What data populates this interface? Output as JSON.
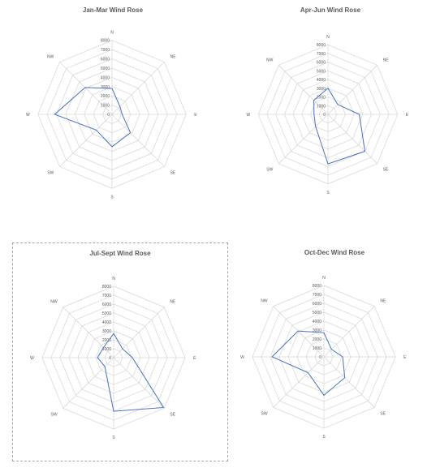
{
  "style": {
    "series_color": "#4472c4",
    "grid_color": "#d9d9d9",
    "text_color": "#595959"
  },
  "chart_data": [
    {
      "type": "radar",
      "title": "Jan-Mar Wind Rose",
      "directions": [
        "N",
        "NE",
        "E",
        "SE",
        "S",
        "SW",
        "W",
        "NW"
      ],
      "rlim": [
        0,
        8000
      ],
      "ticks": [
        0,
        1000,
        2000,
        3000,
        4000,
        5000,
        6000,
        7000,
        8000
      ],
      "grid": true,
      "series": [
        {
          "values": [
            2800,
            1200,
            1100,
            2800,
            3500,
            2400,
            6200,
            4100
          ]
        }
      ]
    },
    {
      "type": "radar",
      "title": "Apr-Jun Wind Rose",
      "directions": [
        "N",
        "NE",
        "E",
        "SE",
        "S",
        "SW",
        "W",
        "NW"
      ],
      "rlim": [
        0,
        8000
      ],
      "ticks": [
        0,
        1000,
        2000,
        3000,
        4000,
        5000,
        6000,
        7000,
        8000
      ],
      "grid": true,
      "series": [
        {
          "values": [
            3000,
            1600,
            3600,
            6000,
            5700,
            2000,
            1600,
            2300
          ]
        }
      ]
    },
    {
      "type": "radar",
      "title": "Jul-Sept Wind Rose",
      "directions": [
        "N",
        "NE",
        "E",
        "SE",
        "S",
        "SW",
        "W",
        "NW"
      ],
      "rlim": [
        0,
        8000
      ],
      "ticks": [
        0,
        1000,
        2000,
        3000,
        4000,
        5000,
        6000,
        7000,
        8000
      ],
      "grid": true,
      "series": [
        {
          "values": [
            2700,
            1400,
            2100,
            7900,
            6000,
            1400,
            1800,
            1600
          ]
        }
      ]
    },
    {
      "type": "radar",
      "title": "Oct-Dec Wind Rose",
      "directions": [
        "N",
        "NE",
        "E",
        "SE",
        "S",
        "SW",
        "W",
        "NW"
      ],
      "rlim": [
        0,
        8000
      ],
      "ticks": [
        0,
        1000,
        2000,
        3000,
        4000,
        5000,
        6000,
        7000,
        8000
      ],
      "grid": true,
      "series": [
        {
          "values": [
            2700,
            1200,
            2100,
            3300,
            4300,
            2500,
            5800,
            4100
          ]
        }
      ]
    }
  ]
}
